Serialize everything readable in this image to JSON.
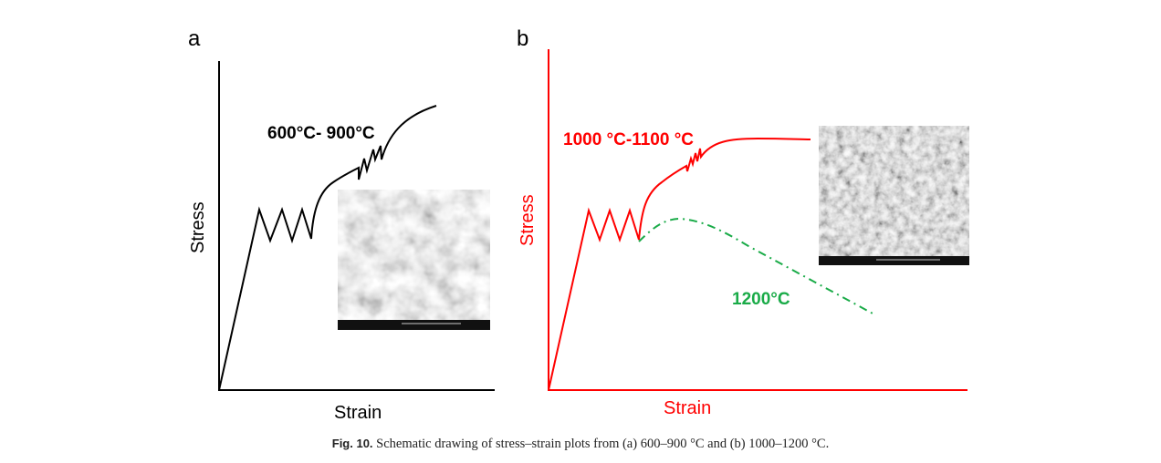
{
  "panels": [
    {
      "letter": "a",
      "ylabel": "Stress",
      "xlabel": "Strain",
      "axis_color": "#000000",
      "curves": [
        {
          "label": "600°C- 900°C",
          "color": "#000000",
          "style": "solid"
        }
      ],
      "inset": "SEM fractograph"
    },
    {
      "letter": "b",
      "ylabel": "Stress",
      "xlabel": "Strain",
      "axis_color": "#ff0000",
      "curves": [
        {
          "label": "1000 °C-1100 °C",
          "color": "#ff0000",
          "style": "solid"
        },
        {
          "label": "1200°C",
          "color": "#1aab48",
          "style": "dash-dot"
        }
      ],
      "inset": "SEM fractograph"
    }
  ],
  "caption": {
    "label": "Fig. 10.",
    "text": " Schematic drawing of stress–strain plots from (a) 600–900 °C and (b) 1000–1200 °C."
  }
}
